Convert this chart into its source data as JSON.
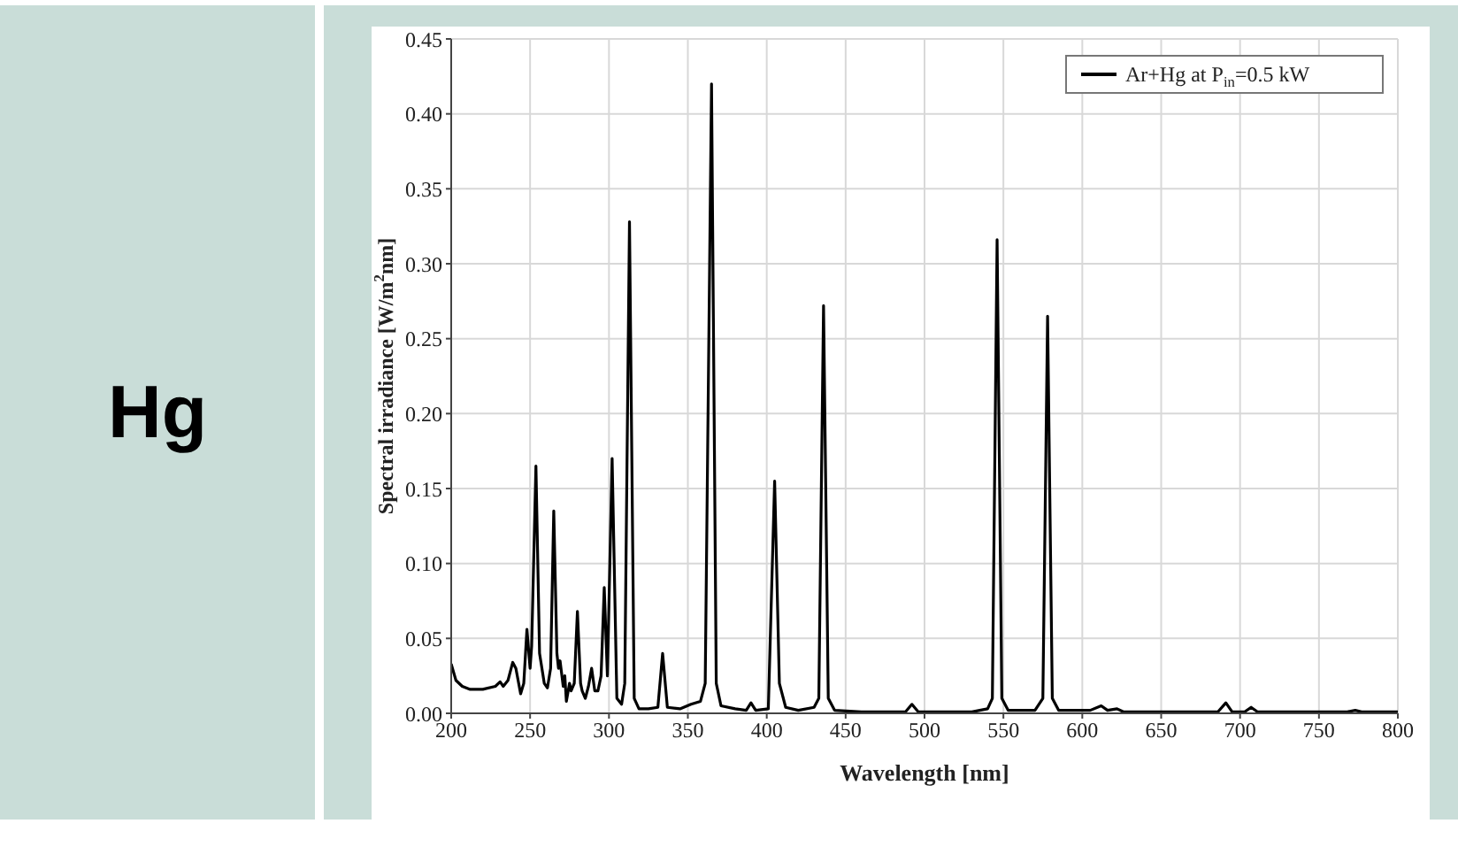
{
  "chart_data": {
    "type": "line",
    "xlabel": "Wavelength [nm]",
    "ylabel": "Spectral irradiance [W/m$^{2}$nm]",
    "annotations": [
      "Hg"
    ],
    "xlim": [
      200,
      800
    ],
    "xticks": [
      200,
      250,
      300,
      350,
      400,
      450,
      500,
      550,
      600,
      650,
      700,
      750,
      800
    ],
    "ylim": [
      0,
      0.45
    ],
    "yticks": [
      {
        "value": 0,
        "label": "0.00"
      },
      {
        "value": 0.05,
        "label": "0.05"
      },
      {
        "value": 0.1,
        "label": "0.10"
      },
      {
        "value": 0.15,
        "label": "0.15"
      },
      {
        "value": 0.2,
        "label": "0.20"
      },
      {
        "value": 0.25,
        "label": "0.25"
      },
      {
        "value": 0.3,
        "label": "0.30"
      },
      {
        "value": 0.35,
        "label": "0.35"
      },
      {
        "value": 0.4,
        "label": "0.40"
      },
      {
        "value": 0.45,
        "label": "0.45"
      }
    ],
    "grid": true,
    "legend": "top right",
    "marker": "none",
    "line_style": "solid",
    "x": [
      200,
      203,
      207,
      212,
      220,
      228,
      231,
      233,
      236,
      239,
      241,
      244,
      246,
      248,
      250,
      251,
      253.7,
      256,
      259,
      261,
      263,
      265,
      267,
      268,
      269,
      271,
      272,
      273,
      275,
      276,
      278,
      280,
      282,
      283,
      285,
      287,
      289,
      291,
      293,
      295,
      297,
      299,
      302,
      305,
      308,
      310,
      313,
      316,
      319,
      325,
      331,
      334,
      337,
      345,
      352,
      358,
      361,
      365,
      368,
      371,
      380,
      387,
      390,
      393,
      401,
      405,
      408,
      412,
      420,
      430,
      433,
      436,
      439,
      443,
      460,
      488,
      492,
      496,
      530,
      540,
      543,
      546,
      549,
      553,
      570,
      575,
      578,
      581,
      585,
      605,
      612,
      616,
      622,
      626,
      650,
      686,
      691,
      695,
      703,
      707,
      711,
      768,
      773,
      777,
      800
    ],
    "series": [
      {
        "name": "Ar+Hg at P$_{in}$=0.5 kW",
        "color": "#000000",
        "values": [
          0.033,
          0.022,
          0.018,
          0.016,
          0.016,
          0.018,
          0.021,
          0.018,
          0.022,
          0.034,
          0.03,
          0.013,
          0.02,
          0.056,
          0.03,
          0.045,
          0.165,
          0.04,
          0.02,
          0.017,
          0.03,
          0.135,
          0.04,
          0.03,
          0.035,
          0.018,
          0.025,
          0.008,
          0.02,
          0.015,
          0.02,
          0.068,
          0.02,
          0.015,
          0.01,
          0.018,
          0.03,
          0.015,
          0.015,
          0.025,
          0.084,
          0.025,
          0.17,
          0.01,
          0.006,
          0.02,
          0.328,
          0.01,
          0.003,
          0.003,
          0.004,
          0.04,
          0.004,
          0.003,
          0.006,
          0.008,
          0.02,
          0.42,
          0.02,
          0.005,
          0.003,
          0.002,
          0.007,
          0.002,
          0.003,
          0.155,
          0.02,
          0.004,
          0.002,
          0.004,
          0.01,
          0.272,
          0.01,
          0.002,
          0.001,
          0.001,
          0.006,
          0.001,
          0.001,
          0.003,
          0.01,
          0.316,
          0.01,
          0.002,
          0.002,
          0.01,
          0.265,
          0.01,
          0.002,
          0.002,
          0.005,
          0.002,
          0.003,
          0.001,
          0.001,
          0.001,
          0.007,
          0.001,
          0.001,
          0.004,
          0.001,
          0.001,
          0.002,
          0.001,
          0.001
        ]
      }
    ]
  }
}
